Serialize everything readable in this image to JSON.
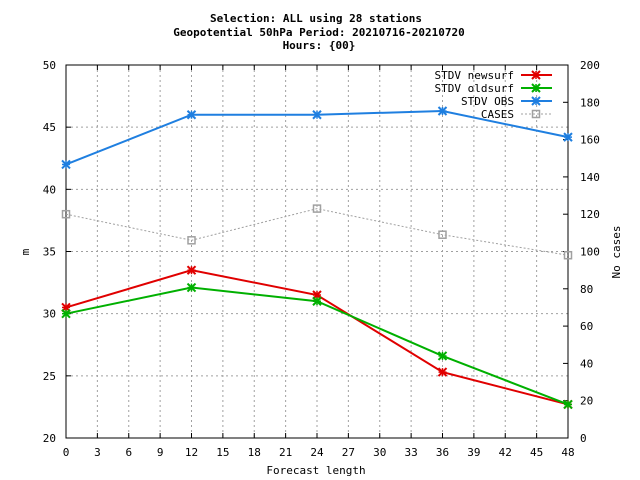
{
  "chart_data": {
    "type": "line",
    "title_lines": [
      "Selection: ALL using    28 stations",
      "Geopotential 50hPa   Period: 20210716-20210720",
      "Hours: {00}"
    ],
    "xlabel": "Forecast length",
    "ylabel": "m",
    "y2label": "No cases",
    "x_ticks": [
      0,
      3,
      6,
      9,
      12,
      15,
      18,
      21,
      24,
      27,
      30,
      33,
      36,
      39,
      42,
      45,
      48
    ],
    "xlim": [
      0,
      48
    ],
    "ylim": [
      20,
      50
    ],
    "y_ticks": [
      20,
      25,
      30,
      35,
      40,
      45,
      50
    ],
    "y2lim": [
      0,
      200
    ],
    "y2_ticks": [
      0,
      20,
      40,
      60,
      80,
      100,
      120,
      140,
      160,
      180,
      200
    ],
    "grid": true,
    "legend_position": "top-right",
    "series": [
      {
        "name": "STDV newsurf",
        "axis": "y",
        "color": "#e00000",
        "marker": "x",
        "x": [
          0,
          12,
          24,
          36,
          48
        ],
        "values": [
          30.5,
          33.5,
          31.5,
          25.3,
          22.7
        ]
      },
      {
        "name": "STDV oldsurf",
        "axis": "y",
        "color": "#00b000",
        "marker": "x",
        "x": [
          0,
          12,
          24,
          36,
          48
        ],
        "values": [
          30.0,
          32.1,
          31.0,
          26.6,
          22.7
        ]
      },
      {
        "name": "STDV OBS",
        "axis": "y",
        "color": "#1f7fe0",
        "marker": "x",
        "x": [
          0,
          12,
          24,
          36,
          48
        ],
        "values": [
          42.0,
          46.0,
          46.0,
          46.3,
          44.2
        ]
      },
      {
        "name": "CASES",
        "axis": "y2",
        "color": "#a0a0a0",
        "marker": "square",
        "dashed": true,
        "x": [
          0,
          12,
          24,
          36,
          48
        ],
        "values": [
          120,
          106,
          123,
          109,
          98
        ]
      }
    ]
  }
}
